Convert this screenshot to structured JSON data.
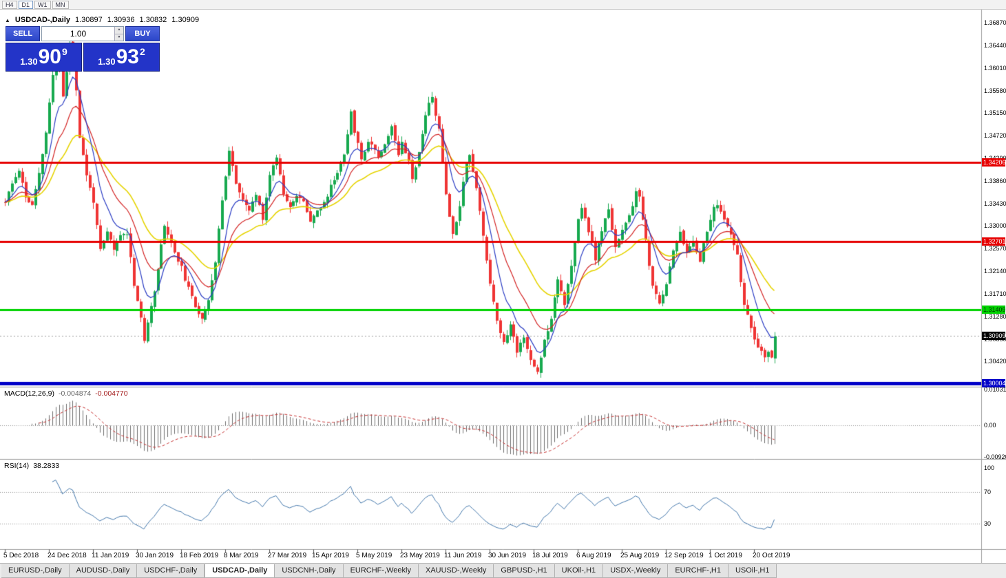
{
  "toolbar": {
    "timeframes": [
      "H4",
      "D1",
      "W1",
      "MN"
    ],
    "active": "D1"
  },
  "chart_header": {
    "collapse_icon": "▲",
    "symbol_title": "USDCAD-,Daily",
    "ohlc": {
      "open": "1.30897",
      "high": "1.30936",
      "low": "1.30832",
      "close": "1.30909"
    }
  },
  "trade_panel": {
    "sell_label": "SELL",
    "buy_label": "BUY",
    "volume": "1.00",
    "sell_price": {
      "prefix": "1.30",
      "main": "90",
      "sup": "9"
    },
    "buy_price": {
      "prefix": "1.30",
      "main": "93",
      "sup": "2"
    }
  },
  "price_axis": {
    "labels": [
      "1.36870",
      "1.36440",
      "1.36010",
      "1.35580",
      "1.35150",
      "1.34720",
      "1.34290",
      "1.33860",
      "1.33430",
      "1.33000",
      "1.32570",
      "1.32140",
      "1.31710",
      "1.31280",
      "1.30850",
      "1.30420"
    ]
  },
  "levels": [
    {
      "label": "1.34206",
      "value": 1.34206,
      "color": "#e60000",
      "line_width": 3,
      "text_color": "#ffffff"
    },
    {
      "label": "1.32701",
      "value": 1.32701,
      "color": "#e60000",
      "line_width": 3,
      "text_color": "#ffffff"
    },
    {
      "label": "1.31409",
      "value": 1.31409,
      "color": "#00d200",
      "line_width": 3,
      "text_color": "#003300"
    },
    {
      "label": "1.30004",
      "value": 1.30004,
      "color": "#0000c8",
      "line_width": 5,
      "text_color": "#ffffff"
    }
  ],
  "current_price": {
    "label": "1.30909",
    "value": 1.30909,
    "bg": "#000000"
  },
  "macd": {
    "label": "MACD(12,26,9)",
    "value_main": "-0.004874",
    "value_signal": "-0.004770",
    "fast": 12,
    "slow": 26,
    "signal_period": 9,
    "axis": {
      "top": "0.010311",
      "zero": "0.00",
      "bottom": "-0.009203"
    }
  },
  "rsi": {
    "label": "RSI(14)",
    "value": "38.2833",
    "period": 14,
    "levels": [
      "100",
      "70",
      "30"
    ]
  },
  "time_axis": {
    "bars_per_label": 13,
    "labels": [
      "5 Dec 2018",
      "24 Dec 2018",
      "11 Jan 2019",
      "30 Jan 2019",
      "18 Feb 2019",
      "8 Mar 2019",
      "27 Mar 2019",
      "15 Apr 2019",
      "5 May 2019",
      "23 May 2019",
      "11 Jun 2019",
      "30 Jun 2019",
      "18 Jul 2019",
      "6 Aug 2019",
      "25 Aug 2019",
      "12 Sep 2019",
      "1 Oct 2019",
      "20 Oct 2019"
    ]
  },
  "tabs": [
    "EURUSD-,Daily",
    "AUDUSD-,Daily",
    "USDCHF-,Daily",
    "USDCAD-,Daily",
    "USDCNH-,Daily",
    "EURCHF-,Weekly",
    "XAUUSD-,Weekly",
    "GBPUSD-,H1",
    "UKOil-,H1",
    "USDX-,Weekly",
    "EURCHF-,H1",
    "USOil-,H1"
  ],
  "active_tab": "USDCAD-,Daily",
  "chart_data": {
    "type": "candlestick",
    "symbol": "USDCAD",
    "timeframe": "Daily",
    "bars": 228,
    "y_range": [
      1.2994,
      1.3712
    ],
    "seed": 11,
    "noise": 0.0009,
    "wick": 0.0012,
    "colors": {
      "up": "#17a94f",
      "down": "#ef3434",
      "macd_hist": "#6f6f6f",
      "macd_signal": "#c83232",
      "rsi": "#4579ad"
    },
    "ma": [
      {
        "name": "ma-fast",
        "period": 8,
        "color": "#2a3cc4",
        "width": 1.2
      },
      {
        "name": "ma-mid",
        "period": 16,
        "color": "#d42424",
        "width": 1.2
      },
      {
        "name": "ma-slow",
        "period": 30,
        "color": "#e6d400",
        "width": 1.6
      }
    ],
    "price_anchors": [
      [
        0,
        1.3345
      ],
      [
        2,
        1.338
      ],
      [
        4,
        1.3408
      ],
      [
        6,
        1.3355
      ],
      [
        8,
        1.3338
      ],
      [
        10,
        1.3398
      ],
      [
        12,
        1.3478
      ],
      [
        14,
        1.3588
      ],
      [
        15,
        1.3638
      ],
      [
        16,
        1.36
      ],
      [
        17,
        1.3548
      ],
      [
        18,
        1.3592
      ],
      [
        19,
        1.365
      ],
      [
        20,
        1.3638
      ],
      [
        21,
        1.356
      ],
      [
        22,
        1.347
      ],
      [
        24,
        1.3396
      ],
      [
        26,
        1.3348
      ],
      [
        28,
        1.3252
      ],
      [
        30,
        1.3288
      ],
      [
        32,
        1.3256
      ],
      [
        34,
        1.3282
      ],
      [
        36,
        1.3288
      ],
      [
        38,
        1.319
      ],
      [
        40,
        1.3126
      ],
      [
        41,
        1.3082
      ],
      [
        42,
        1.3112
      ],
      [
        44,
        1.318
      ],
      [
        46,
        1.3262
      ],
      [
        47,
        1.3304
      ],
      [
        49,
        1.3266
      ],
      [
        52,
        1.322
      ],
      [
        54,
        1.318
      ],
      [
        56,
        1.3146
      ],
      [
        58,
        1.3126
      ],
      [
        60,
        1.3162
      ],
      [
        62,
        1.323
      ],
      [
        64,
        1.3352
      ],
      [
        66,
        1.3444
      ],
      [
        68,
        1.3382
      ],
      [
        70,
        1.3346
      ],
      [
        72,
        1.333
      ],
      [
        74,
        1.336
      ],
      [
        76,
        1.3316
      ],
      [
        78,
        1.3396
      ],
      [
        80,
        1.3434
      ],
      [
        82,
        1.3362
      ],
      [
        84,
        1.334
      ],
      [
        86,
        1.3356
      ],
      [
        88,
        1.3346
      ],
      [
        90,
        1.3312
      ],
      [
        92,
        1.333
      ],
      [
        94,
        1.3342
      ],
      [
        96,
        1.3376
      ],
      [
        98,
        1.3402
      ],
      [
        100,
        1.344
      ],
      [
        102,
        1.3514
      ],
      [
        103,
        1.3482
      ],
      [
        105,
        1.3428
      ],
      [
        107,
        1.3462
      ],
      [
        109,
        1.3448
      ],
      [
        110,
        1.3432
      ],
      [
        112,
        1.3458
      ],
      [
        114,
        1.3488
      ],
      [
        116,
        1.3438
      ],
      [
        117,
        1.3464
      ],
      [
        119,
        1.3422
      ],
      [
        120,
        1.3392
      ],
      [
        122,
        1.3438
      ],
      [
        124,
        1.3514
      ],
      [
        126,
        1.3548
      ],
      [
        127,
        1.3512
      ],
      [
        128,
        1.3482
      ],
      [
        130,
        1.3362
      ],
      [
        132,
        1.3282
      ],
      [
        134,
        1.3342
      ],
      [
        136,
        1.3424
      ],
      [
        137,
        1.3436
      ],
      [
        139,
        1.3372
      ],
      [
        141,
        1.3282
      ],
      [
        143,
        1.3192
      ],
      [
        145,
        1.3122
      ],
      [
        147,
        1.3076
      ],
      [
        149,
        1.3112
      ],
      [
        151,
        1.3062
      ],
      [
        153,
        1.3092
      ],
      [
        155,
        1.3042
      ],
      [
        157,
        1.3022
      ],
      [
        159,
        1.3082
      ],
      [
        161,
        1.3126
      ],
      [
        163,
        1.3202
      ],
      [
        165,
        1.3152
      ],
      [
        167,
        1.3222
      ],
      [
        169,
        1.3312
      ],
      [
        170,
        1.3336
      ],
      [
        172,
        1.3292
      ],
      [
        174,
        1.3236
      ],
      [
        176,
        1.3292
      ],
      [
        178,
        1.333
      ],
      [
        180,
        1.3262
      ],
      [
        182,
        1.3292
      ],
      [
        184,
        1.3316
      ],
      [
        186,
        1.3366
      ],
      [
        187,
        1.3352
      ],
      [
        189,
        1.3272
      ],
      [
        191,
        1.3182
      ],
      [
        193,
        1.3152
      ],
      [
        195,
        1.3192
      ],
      [
        197,
        1.3252
      ],
      [
        199,
        1.3292
      ],
      [
        201,
        1.3246
      ],
      [
        203,
        1.3272
      ],
      [
        205,
        1.3236
      ],
      [
        207,
        1.3292
      ],
      [
        209,
        1.3332
      ],
      [
        210,
        1.3342
      ],
      [
        212,
        1.3312
      ],
      [
        214,
        1.3282
      ],
      [
        216,
        1.3242
      ],
      [
        218,
        1.3152
      ],
      [
        220,
        1.3102
      ],
      [
        222,
        1.3068
      ],
      [
        224,
        1.3048
      ],
      [
        225,
        1.3062
      ],
      [
        226,
        1.3052
      ],
      [
        227,
        1.309
      ]
    ]
  }
}
